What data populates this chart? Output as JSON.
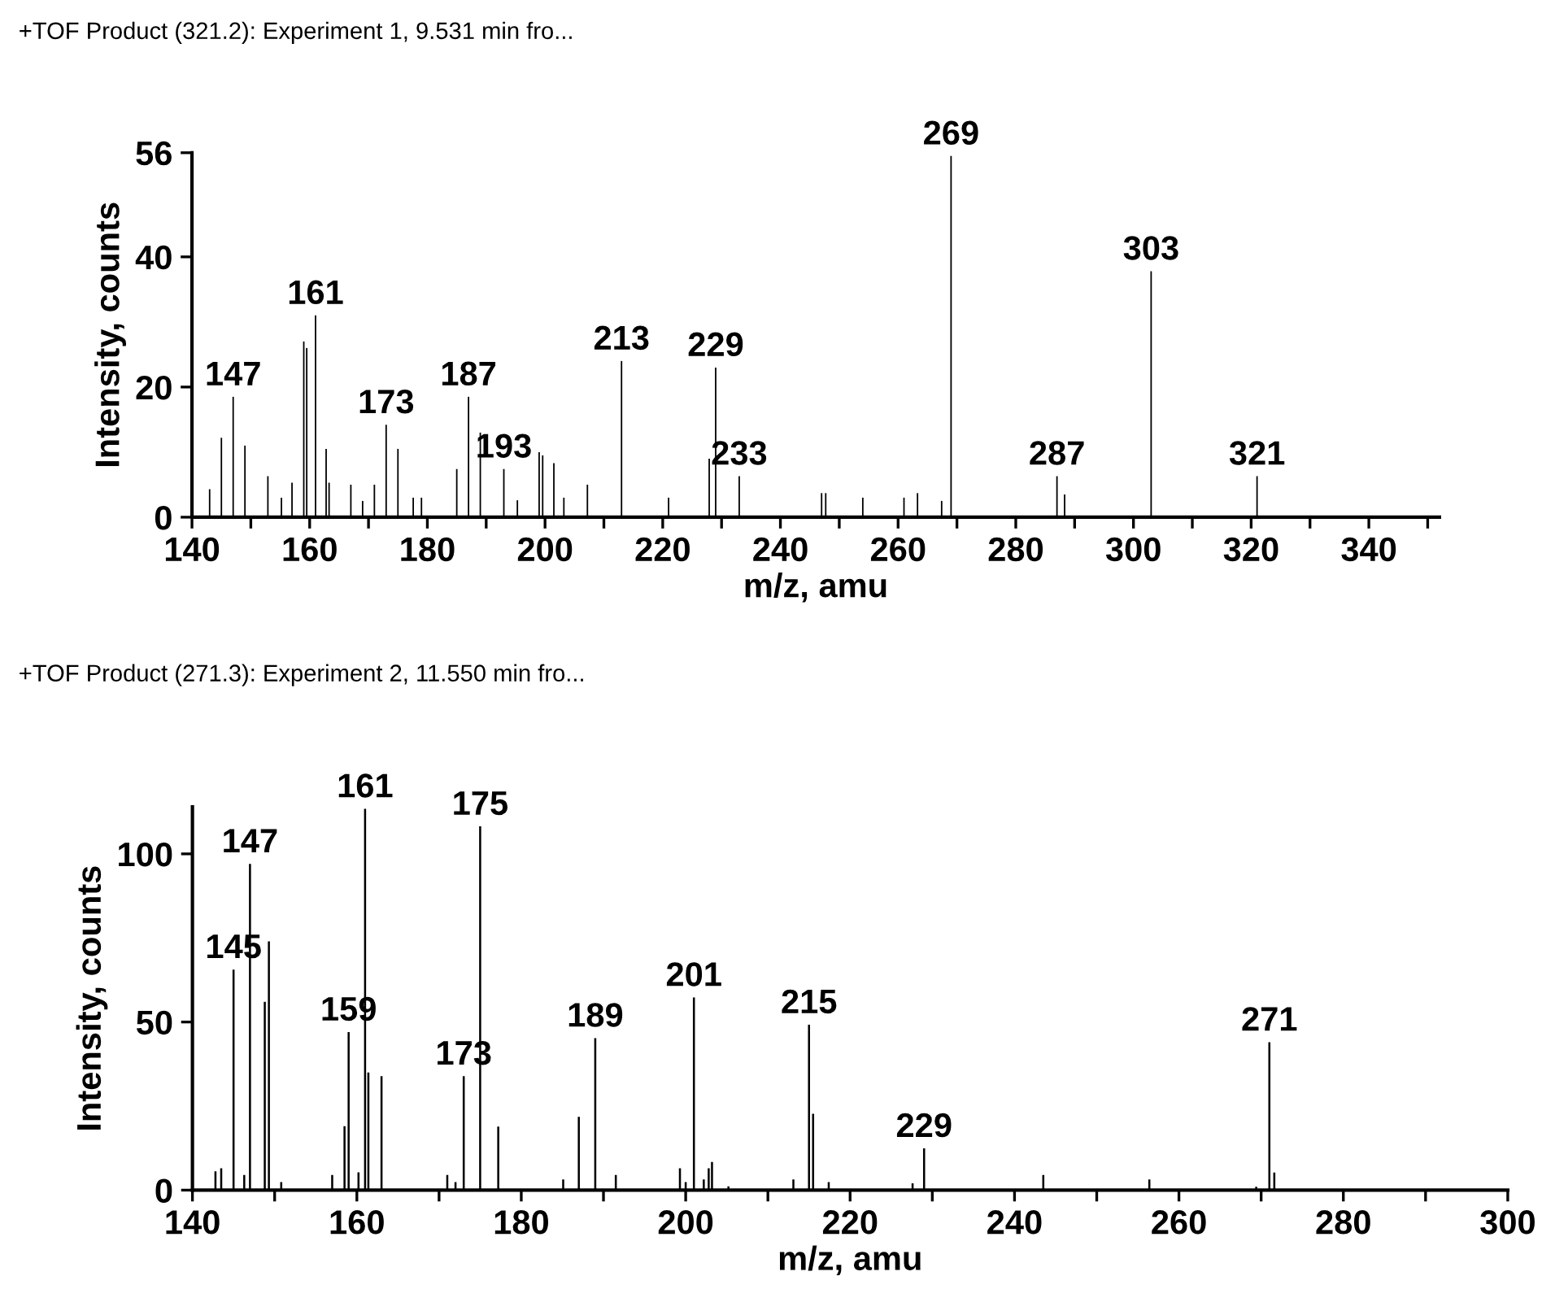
{
  "chart_data": [
    {
      "type": "bar",
      "title": "+TOF Product (321.2): Experiment 1, 9.531 min fro...",
      "xlabel": "m/z, amu",
      "ylabel": "Intensity, counts",
      "x": [
        143,
        145,
        147,
        149,
        152.9,
        155.2,
        157,
        159,
        159.5,
        161,
        162.8,
        163.3,
        167,
        169,
        171,
        173,
        175,
        177.6,
        179,
        185,
        187,
        189,
        193,
        195.3,
        199,
        199.6,
        201.5,
        203.2,
        207.2,
        213,
        221,
        227.9,
        229,
        233,
        247,
        247.7,
        254,
        261,
        263.3,
        267.4,
        269,
        287,
        288.3,
        303,
        321
      ],
      "series": [
        {
          "color": "#000000",
          "values": [
            4.3,
            12.2,
            18.5,
            11,
            6.3,
            3,
            5.3,
            27,
            26,
            31,
            10.5,
            5.3,
            5,
            2.5,
            5,
            14.2,
            10.5,
            3,
            3,
            7.4,
            18.5,
            13,
            7.4,
            2.6,
            10,
            9.5,
            8.3,
            3,
            5,
            24,
            3,
            9,
            23,
            6.3,
            3.7,
            3.7,
            3,
            3,
            3.7,
            2.5,
            55.5,
            6.3,
            3.5,
            37.8,
            6.3
          ]
        }
      ],
      "xlim": [
        140,
        352
      ],
      "ylim": [
        0,
        56
      ],
      "xticks": [
        140,
        {
          "value": 150,
          "label": null
        },
        160,
        {
          "value": 170,
          "label": null
        },
        180,
        {
          "value": 190,
          "label": null
        },
        200,
        {
          "value": 210,
          "label": null
        },
        220,
        {
          "value": 230,
          "label": null
        },
        240,
        {
          "value": 250,
          "label": null
        },
        260,
        {
          "value": 270,
          "label": null
        },
        280,
        {
          "value": 290,
          "label": null
        },
        300,
        {
          "value": 310,
          "label": null
        },
        320,
        {
          "value": 330,
          "label": null
        },
        340,
        {
          "value": 350,
          "label": null
        }
      ],
      "yticks": [
        0,
        20,
        40,
        56
      ],
      "grid": false,
      "legend": false,
      "annotations": [
        {
          "text": "147",
          "x": 147,
          "y": 18.5
        },
        {
          "text": "161",
          "x": 161,
          "y": 31
        },
        {
          "text": "173",
          "x": 173,
          "y": 14.2
        },
        {
          "text": "187",
          "x": 187,
          "y": 18.5
        },
        {
          "text": "193",
          "x": 193,
          "y": 7.4
        },
        {
          "text": "213",
          "x": 213,
          "y": 24
        },
        {
          "text": "229",
          "x": 229,
          "y": 23
        },
        {
          "text": "233",
          "x": 233,
          "y": 6.3
        },
        {
          "text": "269",
          "x": 269,
          "y": 55.5
        },
        {
          "text": "287",
          "x": 287,
          "y": 6.3
        },
        {
          "text": "303",
          "x": 303,
          "y": 37.8
        },
        {
          "text": "321",
          "x": 321,
          "y": 6.3
        }
      ]
    },
    {
      "type": "bar",
      "title": "+TOF Product (271.3): Experiment 2, 11.550 min fro...",
      "xlabel": "m/z, amu",
      "ylabel": "Intensity, counts",
      "x": [
        142.8,
        143.5,
        145,
        146.3,
        147,
        148.8,
        149.3,
        150.8,
        157,
        158.5,
        159,
        160.2,
        161,
        161.4,
        163,
        171,
        172,
        173,
        175,
        177.2,
        185.1,
        187,
        189,
        191.5,
        199.3,
        200,
        201,
        202.2,
        202.8,
        203.2,
        205.2,
        213.1,
        215,
        215.5,
        217.4,
        227.6,
        229,
        243.5,
        256.4,
        269.4,
        271,
        271.6
      ],
      "series": [
        {
          "color": "#000000",
          "values": [
            5.6,
            6.5,
            65.6,
            4.5,
            97,
            56,
            74,
            2.4,
            4.5,
            19,
            47,
            5.3,
            113.4,
            35,
            33.9,
            4.5,
            2.4,
            33.9,
            108.2,
            18.9,
            3.2,
            21.8,
            45.2,
            4.5,
            6.5,
            2.4,
            57.3,
            3.2,
            6.5,
            8.4,
            1.1,
            3.2,
            49.2,
            22.7,
            2.4,
            2,
            12.4,
            4.5,
            3.2,
            1,
            44,
            5.2
          ]
        }
      ],
      "xlim": [
        140,
        300
      ],
      "ylim": [
        0,
        114
      ],
      "xticks": [
        140,
        {
          "value": 150,
          "label": null
        },
        160,
        {
          "value": 170,
          "label": null
        },
        180,
        {
          "value": 190,
          "label": null
        },
        200,
        {
          "value": 210,
          "label": null
        },
        220,
        {
          "value": 230,
          "label": null
        },
        240,
        {
          "value": 250,
          "label": null
        },
        260,
        {
          "value": 270,
          "label": null
        },
        280,
        {
          "value": 290,
          "label": null
        },
        300
      ],
      "yticks": [
        0,
        50,
        100
      ],
      "grid": false,
      "legend": false,
      "annotations": [
        {
          "text": "145",
          "x": 145,
          "y": 65.6
        },
        {
          "text": "147",
          "x": 147,
          "y": 97
        },
        {
          "text": "159",
          "x": 159,
          "y": 47
        },
        {
          "text": "161",
          "x": 161,
          "y": 113.4
        },
        {
          "text": "173",
          "x": 173,
          "y": 33.9
        },
        {
          "text": "175",
          "x": 175,
          "y": 108.2
        },
        {
          "text": "189",
          "x": 189,
          "y": 45.2
        },
        {
          "text": "201",
          "x": 201,
          "y": 57.3
        },
        {
          "text": "215",
          "x": 215,
          "y": 49.2
        },
        {
          "text": "229",
          "x": 229,
          "y": 12.4
        },
        {
          "text": "271",
          "x": 271,
          "y": 44
        }
      ]
    }
  ]
}
